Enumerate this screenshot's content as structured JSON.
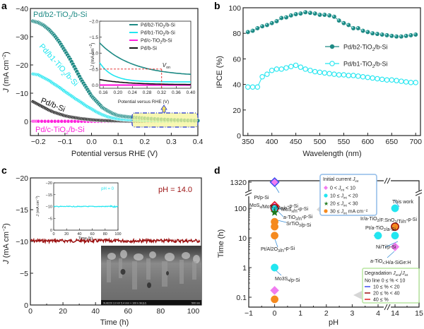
{
  "colors": {
    "teal": "#1e8a85",
    "cyan": "#22e6f0",
    "magenta": "#ff22dd",
    "black": "#111111",
    "darkred": "#9b1010",
    "orange": "#f58a1f",
    "pink": "#f07cf0",
    "green": "#1f7a1f",
    "blue": "#3a4ef0",
    "red": "#e02020"
  },
  "chart_data": [
    {
      "panel": "a",
      "type": "scatter",
      "xlabel": "Potential versus RHE (V)",
      "ylabel": "J (mA cm⁻²)",
      "xlim": [
        -0.23,
        0.4
      ],
      "ylim": [
        5,
        -40
      ],
      "xticks": [
        "-0.2",
        "-0.1",
        "0.0",
        "0.1",
        "0.2",
        "0.3",
        "0.4"
      ],
      "yticks": [
        "-40",
        "-30",
        "-20",
        "-10",
        "0"
      ],
      "series": [
        {
          "name": "Pd/b2-TiO2/b-Si",
          "color": "teal",
          "x": [
            -0.22,
            -0.2,
            -0.18,
            -0.16,
            -0.14,
            -0.12,
            -0.1,
            -0.08,
            -0.06,
            -0.04,
            -0.02,
            0.0,
            0.02,
            0.04,
            0.06,
            0.08,
            0.1,
            0.12,
            0.14,
            0.16,
            0.2,
            0.25,
            0.3,
            0.35,
            0.4
          ],
          "y": [
            -35.5,
            -35,
            -34,
            -32.5,
            -30.5,
            -28,
            -25,
            -22,
            -18.5,
            -15,
            -12,
            -9,
            -7,
            -5,
            -3.8,
            -2.8,
            -2.1,
            -1.8,
            -1.6,
            -1.4,
            -1.1,
            -0.8,
            -0.55,
            -0.4,
            -0.27
          ]
        },
        {
          "name": "Pd/b1-TiO2/b-Si",
          "color": "cyan",
          "x": [
            -0.22,
            -0.2,
            -0.18,
            -0.16,
            -0.14,
            -0.12,
            -0.1,
            -0.08,
            -0.06,
            -0.04,
            -0.02,
            0.0,
            0.02,
            0.04,
            0.06,
            0.08,
            0.1,
            0.12,
            0.14,
            0.16,
            0.2,
            0.25,
            0.3,
            0.35,
            0.4
          ],
          "y": [
            -16.8,
            -16.5,
            -15.5,
            -14.5,
            -13.2,
            -12,
            -10.6,
            -9.3,
            -8,
            -6.8,
            -5.5,
            -4.4,
            -3.3,
            -2.4,
            -1.7,
            -1.2,
            -0.9,
            -0.7,
            -0.6,
            -0.55,
            -0.35,
            -0.2,
            -0.15,
            -0.12,
            -0.1
          ]
        },
        {
          "name": "Pd/b-Si",
          "color": "black",
          "x": [
            -0.22,
            -0.2,
            -0.18,
            -0.16,
            -0.14,
            -0.12,
            -0.1,
            -0.08,
            -0.06,
            -0.04,
            -0.02,
            0.0,
            0.02,
            0.04,
            0.06,
            0.08,
            0.1,
            0.12,
            0.14,
            0.16,
            0.2,
            0.3,
            0.4
          ],
          "y": [
            -7,
            -6,
            -5,
            -4,
            -3.2,
            -2.6,
            -2,
            -1.6,
            -1.3,
            -1,
            -0.8,
            -0.6,
            -0.45,
            -0.35,
            -0.28,
            -0.22,
            -0.18,
            -0.15,
            -0.13,
            -0.12,
            -0.08,
            -0.03,
            -0.01
          ]
        },
        {
          "name": "Pd/c-TiO2/b-Si",
          "color": "magenta",
          "x": [
            -0.22,
            -0.2,
            -0.15,
            -0.1,
            -0.05,
            0.0,
            0.05,
            0.1,
            0.15,
            0.2,
            0.25,
            0.3,
            0.35,
            0.4
          ],
          "y": [
            -0.05,
            -0.05,
            -0.04,
            -0.04,
            -0.03,
            -0.03,
            -0.02,
            -0.02,
            -0.01,
            -0.01,
            0,
            0,
            0,
            0
          ]
        }
      ],
      "annotations": [
        "Pd/b2-TiO2/b-Si",
        "Pd/b1-TiO2/b-Si",
        "Pd/b-Si",
        "Pd/c-TiO2/b-Si"
      ],
      "inset": {
        "xlabel": "Potential versus RHE (V)",
        "ylabel": "J (mA cm⁻²)",
        "xlim": [
          0.15,
          0.4
        ],
        "ylim": [
          0.1,
          -2.0
        ],
        "xticks": [
          "0.16",
          "0.20",
          "0.24",
          "0.28",
          "0.32",
          "0.36",
          "0.40"
        ],
        "yticks": [
          "-2.0",
          "-1.5",
          "-1.0",
          "-0.5",
          "0.0"
        ],
        "legend": [
          "Pd/b2-TiO2/b-Si",
          "Pd/b1-TiO2/b-Si",
          "Pd/c-TiO2/b-Si",
          "Pd/b-Si"
        ],
        "marker_label": "V",
        "marker_sub": "on",
        "marker_x": 0.32,
        "marker_y": -0.5
      }
    },
    {
      "panel": "b",
      "type": "line",
      "xlabel": "Wavelength (nm)",
      "ylabel": "IPCE (%)",
      "xlim": [
        340,
        710
      ],
      "ylim": [
        0,
        100
      ],
      "xticks": [
        "350",
        "400",
        "450",
        "500",
        "550",
        "600",
        "650",
        "700"
      ],
      "yticks": [
        "0",
        "20",
        "40",
        "60",
        "80",
        "100"
      ],
      "legend_position": "right",
      "x": [
        350,
        360,
        370,
        380,
        390,
        400,
        410,
        420,
        430,
        440,
        450,
        460,
        470,
        480,
        490,
        500,
        510,
        520,
        530,
        540,
        550,
        560,
        570,
        580,
        590,
        600,
        610,
        620,
        630,
        640,
        650,
        660,
        670,
        680,
        690,
        700
      ],
      "series": [
        {
          "name": "Pd/b2-TiO2/b-Si",
          "color": "teal",
          "filled": true,
          "values": [
            81,
            82,
            84,
            85.5,
            86.5,
            88,
            89.5,
            92,
            92.5,
            94,
            95,
            95.5,
            96.5,
            96,
            95.5,
            94.5,
            94.5,
            94,
            93,
            90,
            88,
            86.5,
            84,
            84,
            82,
            81,
            80,
            79.5,
            79,
            78.5,
            78,
            77.5,
            77.5,
            78,
            78.5,
            79
          ]
        },
        {
          "name": "Pd/b1-TiO2/b-Si",
          "color": "cyan",
          "filled": false,
          "values": [
            38,
            38,
            38,
            46,
            48,
            51,
            52,
            52,
            53,
            54,
            55,
            53.5,
            52,
            51,
            50,
            49.5,
            49,
            48.5,
            48,
            47.5,
            47.5,
            47,
            47,
            46.5,
            46,
            45.5,
            45,
            44.5,
            44,
            43.5,
            43.5,
            43,
            42.5,
            42,
            41.5,
            41.5
          ]
        }
      ]
    },
    {
      "panel": "c",
      "type": "line",
      "xlabel": "Time (h)",
      "ylabel": "J (mA cm⁻²)",
      "xlim": [
        0,
        105
      ],
      "ylim": [
        0,
        -20
      ],
      "xticks": [
        "0",
        "20",
        "40",
        "60",
        "80",
        "100"
      ],
      "yticks": [
        "0",
        "-5",
        "-10",
        "-15",
        "-20"
      ],
      "annotation": "pH = 14.0",
      "series": [
        {
          "name": "pH = 14.0",
          "color": "darkred",
          "approx_value": -10.1
        }
      ],
      "inset": {
        "xlabel": "Time (h)",
        "ylabel": "J (mA cm⁻²)",
        "xlim": [
          0,
          100
        ],
        "ylim": [
          0,
          -20
        ],
        "xticks": [
          "0",
          "20",
          "40",
          "60",
          "80",
          "100"
        ],
        "yticks": [
          "0",
          "-5",
          "-10",
          "-15",
          "-20"
        ],
        "annotation": "pH = 0",
        "approx_value": -10
      },
      "sem_caption": "SU8220 3.0 kV 5.4 mm × 100 k SE(U)",
      "sem_scale": "500 nm"
    },
    {
      "panel": "d",
      "type": "scatter",
      "xlabel": "pH",
      "ylabel": "Time (h)",
      "xticks": [
        "-1",
        "0",
        "1",
        "2",
        "3",
        "4",
        "14",
        "15"
      ],
      "yticks": [
        "0.1",
        "1",
        "10",
        "100",
        "1320"
      ],
      "yscale": "log",
      "points": [
        {
          "label": "Pt/p-Si",
          "ph": 0,
          "time": 1320,
          "marker": "diamond",
          "color": "pink",
          "edge": "blue"
        },
        {
          "label": "MoSx/MoS2/Mo/n+p-Si",
          "ph": 0,
          "time": 120,
          "marker": "diamond",
          "color": "pink",
          "edge": "red"
        },
        {
          "label": "MoSx/n+p-Si",
          "ph": 0,
          "time": 100,
          "marker": "circle",
          "color": "cyan",
          "edge": "darkred"
        },
        {
          "label": "a-TiO2/n+p-Si",
          "ph": 0,
          "time": 72,
          "marker": "star",
          "color": "green"
        },
        {
          "label": "SrTiO3/p-Si",
          "ph": 0,
          "time": 35,
          "marker": "circle",
          "color": "orange"
        },
        {
          "label": "",
          "ph": 0,
          "time": 24,
          "marker": "circle",
          "color": "orange"
        },
        {
          "label": "Pt/Al2O3/n+p-Si",
          "ph": 0,
          "time": 12,
          "marker": "circle",
          "color": "orange"
        },
        {
          "label": "Mo3S4/p-Si",
          "ph": 0,
          "time": 1,
          "marker": "circle",
          "color": "cyan"
        },
        {
          "label": "",
          "ph": 0,
          "time": 0.17,
          "marker": "diamond",
          "color": "pink"
        },
        {
          "label": "",
          "ph": 0,
          "time": 0.085,
          "marker": "circle",
          "color": "orange"
        },
        {
          "label": "This work",
          "ph": 14,
          "time": 100,
          "marker": "circle",
          "color": "cyan"
        },
        {
          "label": "Ir/a-TiO2/F:SnO2/Ti/n+p-Si",
          "ph": 14,
          "time": 24,
          "marker": "circle",
          "color": "orange",
          "edge": "darkred"
        },
        {
          "label": "Pt/a-TiO2/a-Si",
          "ph": 4,
          "time": 12,
          "marker": "circle",
          "color": "cyan"
        },
        {
          "label": "Ni/Ti/p-Si",
          "ph": 14,
          "time": 12,
          "marker": "circle",
          "color": "cyan"
        },
        {
          "label": "a-TiOx:H/a-SiGe:H",
          "ph": 14,
          "time": 5,
          "marker": "diamond",
          "color": "pink"
        }
      ],
      "legend_initial": {
        "title": "Initial current J",
        "title_sub": "int",
        "items": [
          {
            "label": "0 < J",
            "sub": "int",
            "tail": " < 10",
            "marker": "diamond",
            "color": "pink"
          },
          {
            "label": "10 ≤ J",
            "sub": "int",
            "tail": " < 20",
            "marker": "circle",
            "color": "cyan"
          },
          {
            "label": "20 ≤ J",
            "sub": "int",
            "tail": " < 30",
            "marker": "star",
            "color": "green"
          },
          {
            "label": "30 ≤ J",
            "sub": "int",
            "tail": " mA cm⁻²",
            "marker": "circle",
            "color": "orange"
          }
        ]
      },
      "legend_degradation": {
        "title": "Degradation J",
        "title_sub1": "end",
        "title_mid": "/J",
        "title_sub2": "int",
        "items": [
          {
            "label": "No line 0 ≤ % < 10",
            "color": ""
          },
          {
            "label": "10 ≤ % < 20",
            "color": "blue"
          },
          {
            "label": "20 ≤ % < 40",
            "color": "darkred"
          },
          {
            "label": "40 ≤ %",
            "color": "red"
          }
        ]
      }
    }
  ],
  "panel_labels": [
    "a",
    "b",
    "c",
    "d"
  ]
}
